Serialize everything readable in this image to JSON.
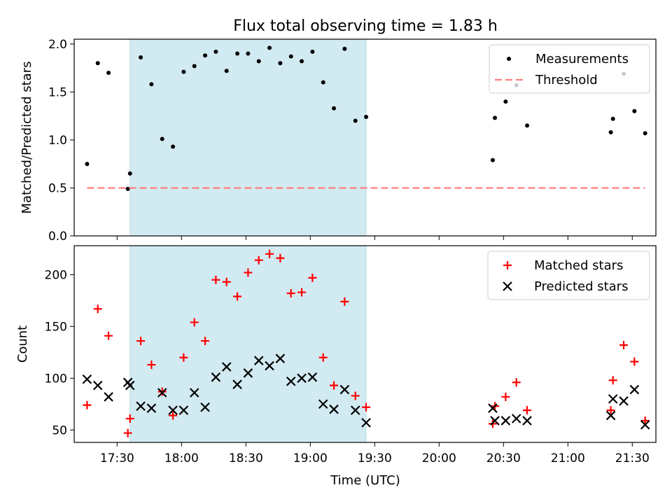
{
  "figure": {
    "title": "Flux total observing time = 1.83 h",
    "xlabel": "Time (UTC)",
    "x_tick_labels": [
      "17:30",
      "18:00",
      "18:30",
      "19:00",
      "19:30",
      "20:00",
      "20:30",
      "21:00",
      "21:30"
    ]
  },
  "chart_data": [
    {
      "type": "scatter",
      "xlabel": "",
      "ylabel": "Matched/Predicted stars",
      "ylim": [
        0.0,
        2.05
      ],
      "y_ticks": [
        "0.0",
        "0.5",
        "1.0",
        "1.5",
        "2.0"
      ],
      "legend_position": "top-right",
      "highlight_span": {
        "x": [
          "17:36",
          "19:26"
        ],
        "color": "#add8e6"
      },
      "series": [
        {
          "name": "Measurements",
          "kind": "points",
          "color": "#000000",
          "x": [
            "17:16",
            "17:21",
            "17:26",
            "17:35",
            "17:36",
            "17:41",
            "17:46",
            "17:51",
            "17:56",
            "18:01",
            "18:06",
            "18:11",
            "18:16",
            "18:21",
            "18:26",
            "18:31",
            "18:36",
            "18:41",
            "18:46",
            "18:51",
            "18:56",
            "19:01",
            "19:06",
            "19:11",
            "19:16",
            "19:21",
            "19:26",
            "20:25",
            "20:26",
            "20:31",
            "20:36",
            "20:41",
            "21:20",
            "21:21",
            "21:26",
            "21:31",
            "21:36"
          ],
          "y": [
            0.75,
            1.8,
            1.7,
            0.49,
            0.65,
            1.86,
            1.58,
            1.01,
            0.93,
            1.71,
            1.77,
            1.88,
            1.92,
            1.72,
            1.9,
            1.9,
            1.82,
            1.96,
            1.8,
            1.87,
            1.82,
            1.92,
            1.6,
            1.33,
            1.95,
            1.2,
            1.24,
            0.79,
            1.23,
            1.4,
            1.57,
            1.15,
            1.08,
            1.22,
            1.69,
            1.3,
            1.07
          ]
        },
        {
          "name": "Threshold",
          "kind": "dashed-line",
          "color": "#ff7f7f",
          "x": [
            "17:16",
            "21:36"
          ],
          "y": [
            0.5,
            0.5
          ]
        }
      ]
    },
    {
      "type": "scatter",
      "xlabel": "Time (UTC)",
      "ylabel": "Count",
      "ylim": [
        38,
        228
      ],
      "y_ticks": [
        "50",
        "100",
        "150",
        "200"
      ],
      "legend_position": "top-right",
      "highlight_span": {
        "x": [
          "17:36",
          "19:26"
        ],
        "color": "#add8e6"
      },
      "series": [
        {
          "name": "Matched stars",
          "marker": "plus",
          "color": "#ff0000",
          "x": [
            "17:16",
            "17:21",
            "17:26",
            "17:35",
            "17:36",
            "17:41",
            "17:46",
            "17:51",
            "17:56",
            "18:01",
            "18:06",
            "18:11",
            "18:16",
            "18:21",
            "18:26",
            "18:31",
            "18:36",
            "18:41",
            "18:46",
            "18:51",
            "18:56",
            "19:01",
            "19:06",
            "19:11",
            "19:16",
            "19:21",
            "19:26",
            "20:25",
            "20:26",
            "20:31",
            "20:36",
            "20:41",
            "21:20",
            "21:21",
            "21:26",
            "21:31",
            "21:36"
          ],
          "y": [
            74,
            167,
            141,
            47,
            61,
            136,
            113,
            87,
            64,
            120,
            154,
            136,
            195,
            193,
            179,
            202,
            214,
            220,
            216,
            182,
            183,
            197,
            120,
            93,
            174,
            83,
            72,
            56,
            73,
            82,
            96,
            69,
            69,
            98,
            132,
            116,
            59
          ]
        },
        {
          "name": "Predicted stars",
          "marker": "x",
          "color": "#000000",
          "x": [
            "17:16",
            "17:21",
            "17:26",
            "17:35",
            "17:36",
            "17:41",
            "17:46",
            "17:51",
            "17:56",
            "18:01",
            "18:06",
            "18:11",
            "18:16",
            "18:21",
            "18:26",
            "18:31",
            "18:36",
            "18:41",
            "18:46",
            "18:51",
            "18:56",
            "19:01",
            "19:06",
            "19:11",
            "19:16",
            "19:21",
            "19:26",
            "20:25",
            "20:26",
            "20:31",
            "20:36",
            "20:41",
            "21:20",
            "21:21",
            "21:26",
            "21:31",
            "21:36"
          ],
          "y": [
            99,
            93,
            82,
            96,
            93,
            73,
            71,
            86,
            69,
            69,
            86,
            72,
            101,
            111,
            94,
            105,
            117,
            112,
            119,
            97,
            100,
            101,
            75,
            70,
            89,
            69,
            57,
            71,
            59,
            59,
            61,
            59,
            64,
            80,
            78,
            89,
            55
          ]
        }
      ]
    }
  ]
}
